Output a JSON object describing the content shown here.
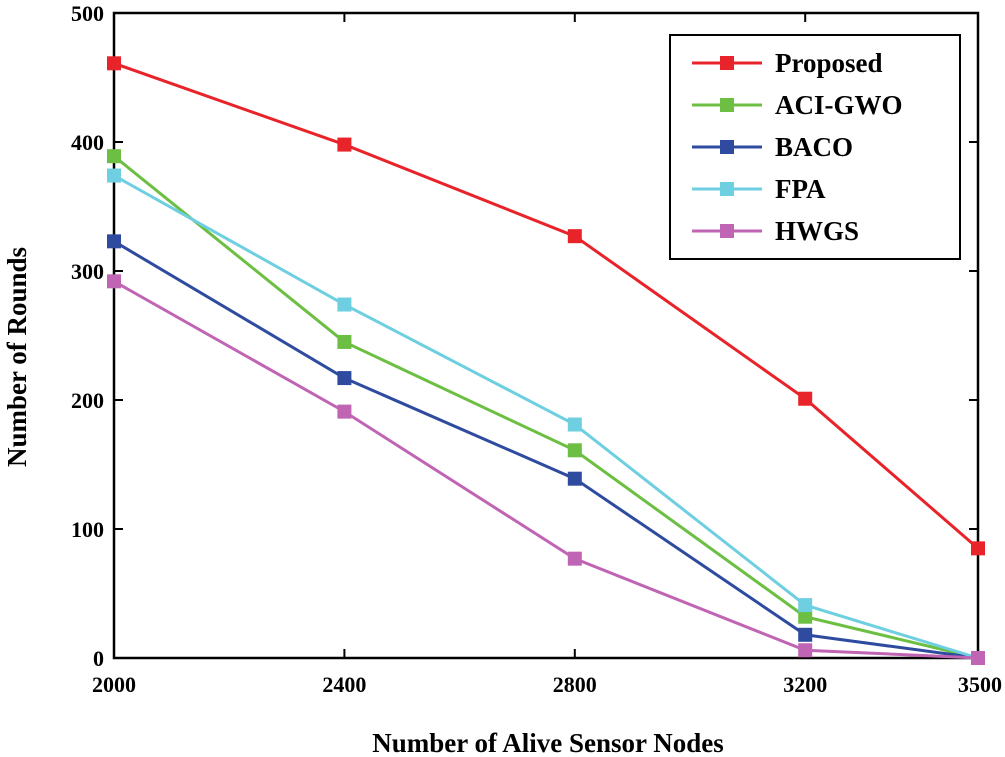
{
  "chart_data": {
    "type": "line",
    "title": "",
    "xlabel": "Number of Alive Sensor Nodes",
    "ylabel": "Number of Rounds",
    "x": [
      2000,
      2400,
      2800,
      3200,
      3500
    ],
    "x_tick_labels": [
      "2000",
      "2400",
      "2800",
      "3200",
      "3500"
    ],
    "y_tick_labels": [
      "0",
      "100",
      "200",
      "300",
      "400",
      "500"
    ],
    "ylim": [
      0,
      500
    ],
    "grid": false,
    "legend_position": "top-right",
    "series": [
      {
        "name": "Proposed",
        "color": "#e8232a",
        "values": [
          461,
          398,
          327,
          201,
          85
        ]
      },
      {
        "name": "ACI-GWO",
        "color": "#6cbf42",
        "values": [
          389,
          245,
          161,
          32,
          0
        ]
      },
      {
        "name": "BACO",
        "color": "#2e4b9f",
        "values": [
          323,
          217,
          139,
          18,
          0
        ]
      },
      {
        "name": "FPA",
        "color": "#6ecfe0",
        "values": [
          374,
          274,
          181,
          41,
          0
        ]
      },
      {
        "name": "HWGS",
        "color": "#c064b4",
        "values": [
          292,
          191,
          77,
          6,
          0
        ]
      }
    ]
  }
}
